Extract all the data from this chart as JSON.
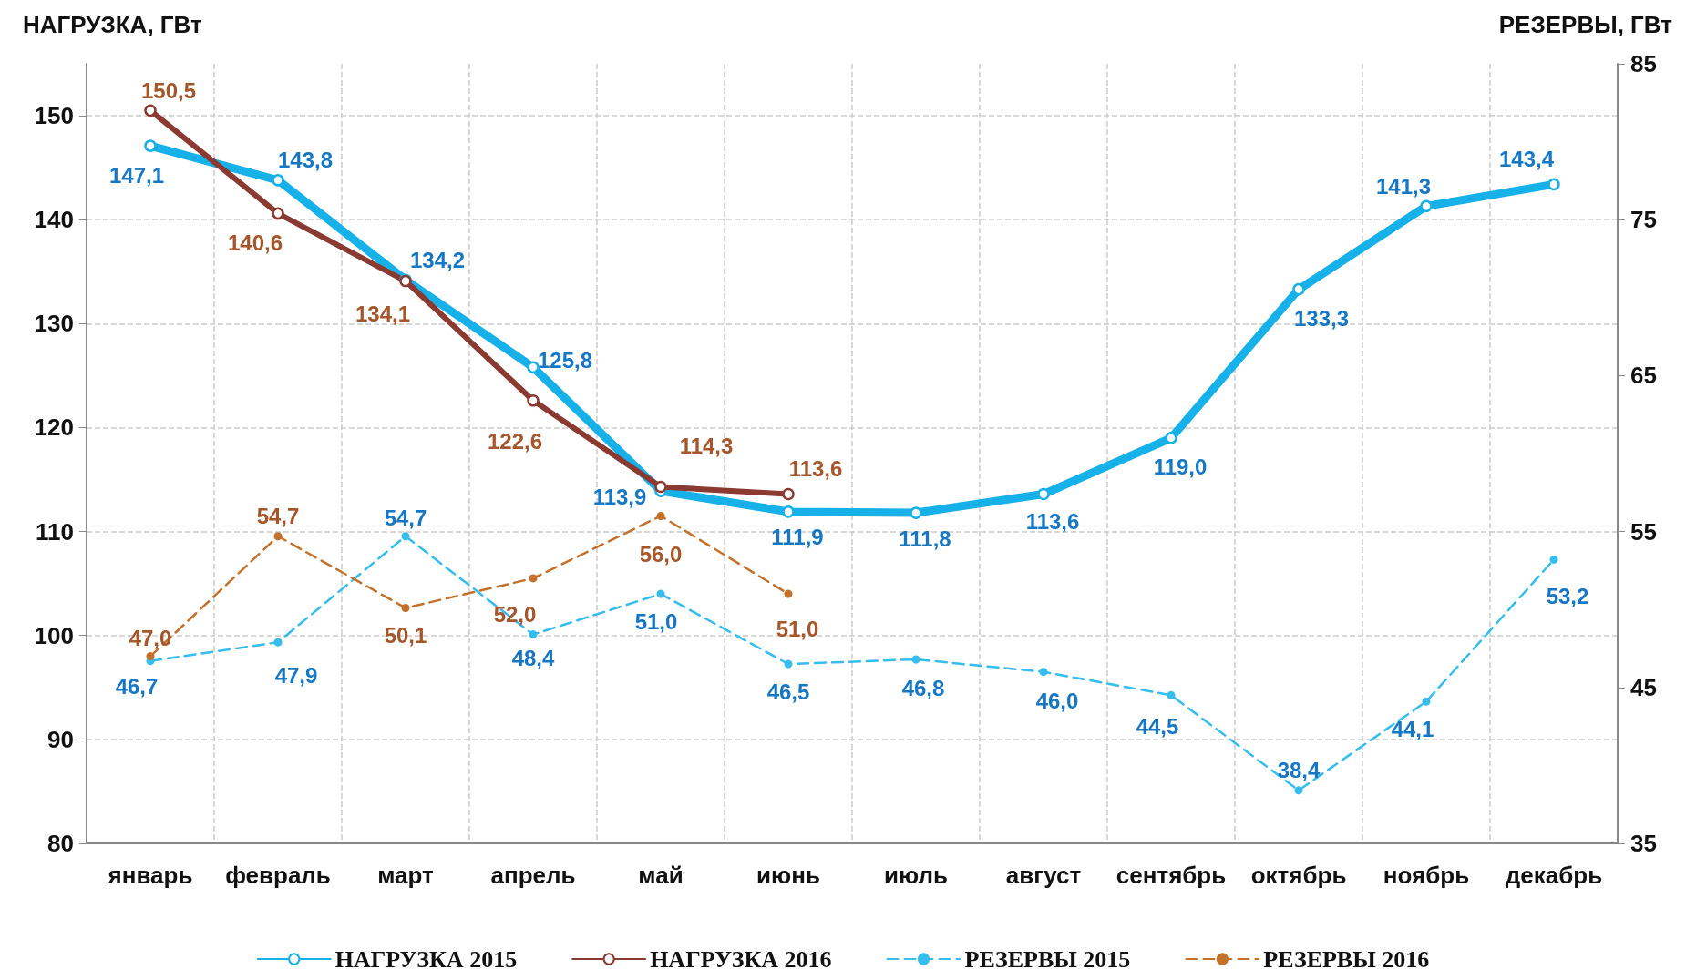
{
  "chart_data": {
    "type": "line",
    "ylabel": "НАГРУЗКА, ГВт",
    "y2label": "РЕЗЕРВЫ, ГВт",
    "categories": [
      "январь",
      "февраль",
      "март",
      "апрель",
      "май",
      "июнь",
      "июль",
      "август",
      "сентябрь",
      "октябрь",
      "ноябрь",
      "декабрь"
    ],
    "ylim": [
      80,
      155
    ],
    "yticks": [
      80,
      90,
      100,
      110,
      120,
      130,
      140,
      150
    ],
    "y2lim": [
      35,
      85
    ],
    "y2ticks": [
      35,
      45,
      55,
      65,
      75,
      85
    ],
    "grid": true,
    "legend": "bottom",
    "marker": "circle",
    "series": [
      {
        "name": "НАГРУЗКА 2015",
        "color": "#17b1ea",
        "line_style": "solid",
        "values": [
          147.1,
          143.8,
          134.2,
          125.8,
          113.9,
          111.9,
          111.8,
          113.6,
          119.0,
          133.3,
          141.3,
          143.4
        ],
        "value_labels": [
          "147,1",
          "143,8",
          "134,2",
          "125,8",
          "113,9",
          "111,9",
          "111,8",
          "113,6",
          "119,0",
          "133,3",
          "141,3",
          "143,4"
        ]
      },
      {
        "name": "НАГРУЗКА 2016",
        "color": "#8b3a32",
        "line_style": "solid",
        "values": [
          150.5,
          140.6,
          134.1,
          122.6,
          114.3,
          113.6,
          null,
          null,
          null,
          null,
          null,
          null
        ],
        "value_labels": [
          "150,5",
          "140,6",
          "134,1",
          "122,6",
          "114,3",
          "113,6",
          null,
          null,
          null,
          null,
          null,
          null
        ]
      },
      {
        "name": "РЕЗЕРВЫ 2015",
        "color": "#35bdee",
        "line_style": "dashed",
        "axis": "y2",
        "values": [
          46.7,
          47.9,
          54.7,
          48.4,
          51.0,
          46.5,
          46.8,
          46.0,
          44.5,
          38.4,
          44.1,
          53.2
        ],
        "value_labels": [
          "46,7",
          "47,9",
          "54,7",
          "48,4",
          "51,0",
          "46,5",
          "46,8",
          "46,0",
          "44,5",
          "38,4",
          "44,1",
          "53,2"
        ]
      },
      {
        "name": "РЕЗЕРВЫ 2016",
        "color": "#c4712c",
        "line_style": "dashed",
        "axis": "y2",
        "values": [
          47.0,
          54.7,
          50.1,
          52.0,
          56.0,
          51.0,
          null,
          null,
          null,
          null,
          null,
          null
        ],
        "value_labels": [
          "47,0",
          "54,7",
          "50,1",
          "52,0",
          "56,0",
          "51,0",
          null,
          null,
          null,
          null,
          null,
          null
        ]
      }
    ]
  }
}
